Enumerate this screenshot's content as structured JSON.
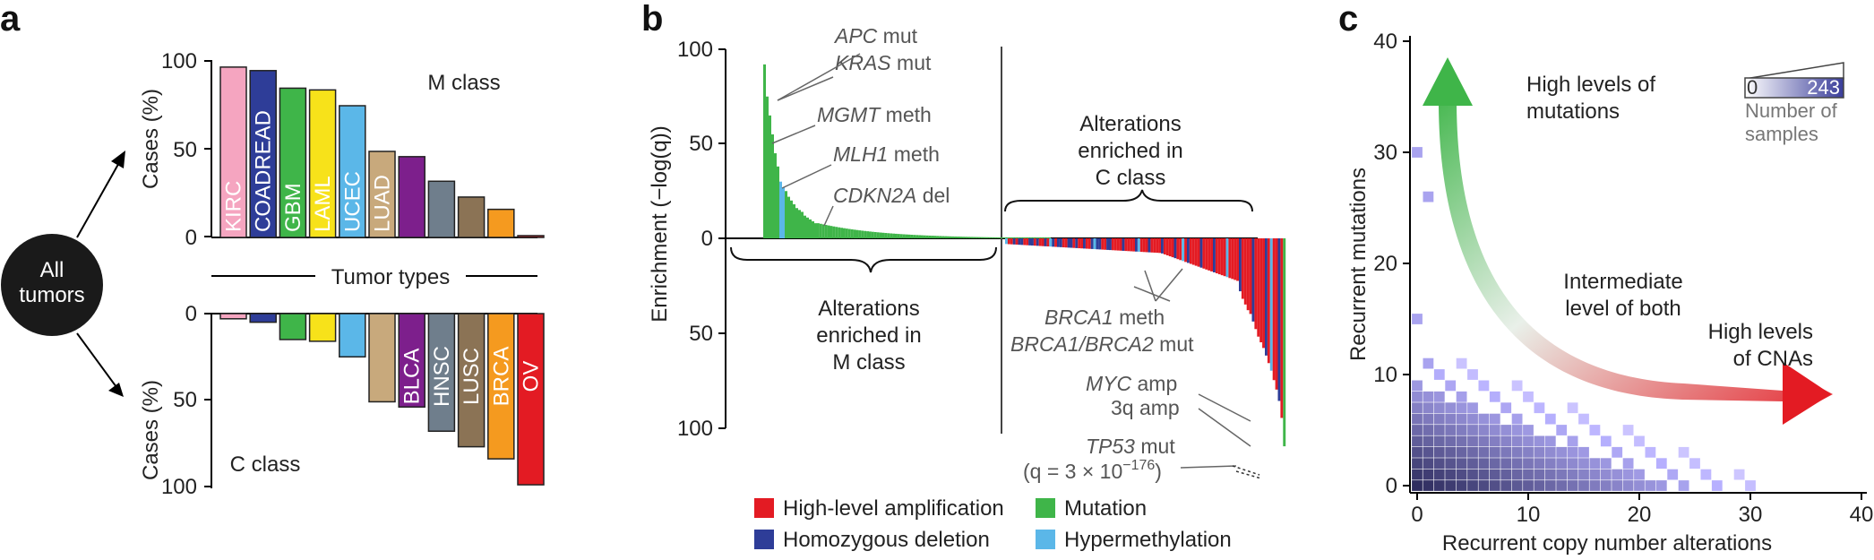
{
  "panel_labels": {
    "a": "a",
    "b": "b",
    "c": "c"
  },
  "chart_data": [
    {
      "id": "a",
      "type": "bar",
      "top": {
        "class_label": "M class",
        "ylabel": "Cases (%)",
        "ylim": [
          0,
          100
        ],
        "yticks": [
          "100",
          "50",
          "0"
        ],
        "bars": [
          {
            "label": "KIRC",
            "value": 97,
            "color": "#f5a5c0"
          },
          {
            "label": "COADREAD",
            "value": 95,
            "color": "#2e3d98"
          },
          {
            "label": "GBM",
            "value": 85,
            "color": "#3fb549"
          },
          {
            "label": "LAML",
            "value": 84,
            "color": "#f7e21a"
          },
          {
            "label": "UCEC",
            "value": 75,
            "color": "#5bb7e8"
          },
          {
            "label": "LUAD",
            "value": 49,
            "color": "#c8a97c"
          },
          {
            "label": "",
            "value": 46,
            "color": "#7d1f8c"
          },
          {
            "label": "",
            "value": 32,
            "color": "#6f7e8c"
          },
          {
            "label": "",
            "value": 23,
            "color": "#8b7355"
          },
          {
            "label": "",
            "value": 16,
            "color": "#f59a1f"
          },
          {
            "label": "",
            "value": 1,
            "color": "#e31b23"
          }
        ]
      },
      "middle_label": "Tumor types",
      "bottom": {
        "class_label": "C class",
        "ylabel": "Cases (%)",
        "ylim": [
          0,
          100
        ],
        "yticks": [
          "0",
          "50",
          "100"
        ],
        "bars": [
          {
            "label": "",
            "value": 3,
            "color": "#f5a5c0"
          },
          {
            "label": "",
            "value": 5,
            "color": "#2e3d98"
          },
          {
            "label": "",
            "value": 15,
            "color": "#3fb549"
          },
          {
            "label": "",
            "value": 16,
            "color": "#f7e21a"
          },
          {
            "label": "",
            "value": 25,
            "color": "#5bb7e8"
          },
          {
            "label": "",
            "value": 51,
            "color": "#c8a97c"
          },
          {
            "label": "BLCA",
            "value": 54,
            "color": "#7d1f8c"
          },
          {
            "label": "HNSC",
            "value": 68,
            "color": "#6f7e8c"
          },
          {
            "label": "LUSC",
            "value": 77,
            "color": "#8b7355"
          },
          {
            "label": "BRCA",
            "value": 84,
            "color": "#f59a1f"
          },
          {
            "label": "OV",
            "value": 99,
            "color": "#e31b23"
          }
        ]
      },
      "circle_label": [
        "All",
        "tumors"
      ]
    },
    {
      "id": "b",
      "type": "bar",
      "ylabel": "Enrichment (−log(q))",
      "yticks_up": [
        "100",
        "50",
        "0"
      ],
      "yticks_down": [
        "50",
        "100"
      ],
      "ylim": [
        -110,
        100
      ],
      "annotations_m": [
        {
          "gene": "APC",
          "rest": " mut"
        },
        {
          "gene": "KRAS",
          "rest": " mut"
        },
        {
          "gene": "MGMT",
          "rest": " meth"
        },
        {
          "gene": "MLH1",
          "rest": " meth"
        },
        {
          "gene": "CDKN2A",
          "rest": " del"
        }
      ],
      "annotations_c": [
        {
          "gene": "BRCA1",
          "rest": " meth"
        },
        {
          "gene": "BRCA1/BRCA2",
          "rest": " mut"
        },
        {
          "gene": "MYC",
          "rest": " amp"
        },
        {
          "gene": "",
          "rest": "3q amp"
        },
        {
          "gene": "TP53",
          "rest": " mut"
        }
      ],
      "tp53_q": "(q = 3 × 10",
      "tp53_exp": "−176",
      "tp53_close": ")",
      "group_c": [
        "Alterations",
        "enriched in",
        "C class"
      ],
      "group_m": [
        "Alterations",
        "enriched in",
        "M class"
      ],
      "m_peaks": [
        92,
        75,
        65,
        55,
        45,
        38,
        30,
        27,
        25,
        22,
        20,
        18,
        16,
        15,
        14,
        12,
        11,
        10,
        9,
        8
      ],
      "c_peaks": [
        -28,
        -32,
        -35,
        -38,
        -40,
        -44,
        -48,
        -52,
        -55,
        -58,
        -62,
        -66,
        -70,
        -75,
        -80,
        -86,
        -95,
        -110
      ],
      "legend": [
        {
          "label": "High-level amplification",
          "color": "#e31b23"
        },
        {
          "label": "Mutation",
          "color": "#3fb549"
        },
        {
          "label": "Homozygous deletion",
          "color": "#2e3d98"
        },
        {
          "label": "Hypermethylation",
          "color": "#5bb7e8"
        }
      ]
    },
    {
      "id": "c",
      "type": "heatmap",
      "xlabel": "Recurrent copy number alterations",
      "ylabel": "Recurrent mutations",
      "xlim": [
        0,
        40
      ],
      "ylim": [
        0,
        40
      ],
      "xticks": [
        "0",
        "10",
        "20",
        "30",
        "40"
      ],
      "yticks": [
        "0",
        "10",
        "20",
        "30",
        "40"
      ],
      "scale_min": "0",
      "scale_max": "243",
      "scale_label": [
        "Number of",
        "samples"
      ],
      "annotations": {
        "mutations": [
          "High levels of",
          "mutations"
        ],
        "intermediate": [
          "Intermediate",
          "level of both"
        ],
        "cnas": [
          "High levels",
          "of CNAs"
        ]
      },
      "colors": {
        "high": "#2e3d98",
        "mutation_arrow": "#3fb549",
        "cna_arrow": "#e31b23"
      }
    }
  ]
}
